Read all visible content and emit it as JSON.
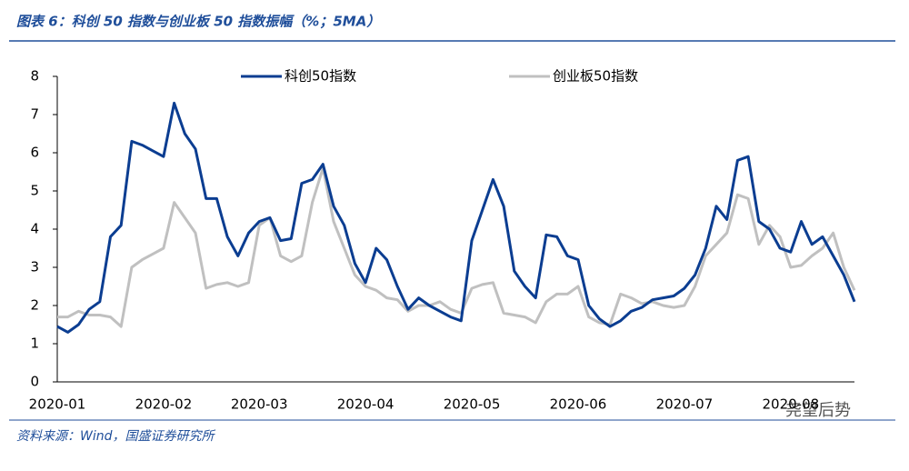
{
  "chart_data": {
    "type": "line",
    "title": "图表 6：科创 50 指数与创业板 50 指数振幅（%；5MA）",
    "source": "资料来源：Wind，国盛证券研究所",
    "watermark": "尧望后势",
    "categories": [
      "2020-01",
      null,
      null,
      null,
      null,
      null,
      null,
      null,
      null,
      null,
      "2020-02",
      null,
      null,
      null,
      null,
      null,
      null,
      null,
      null,
      "2020-03",
      null,
      null,
      null,
      null,
      null,
      null,
      null,
      null,
      null,
      "2020-04",
      null,
      null,
      null,
      null,
      null,
      null,
      null,
      null,
      null,
      "2020-05",
      null,
      null,
      null,
      null,
      null,
      null,
      null,
      null,
      null,
      "2020-06",
      null,
      null,
      null,
      null,
      null,
      null,
      null,
      null,
      null,
      "2020-07",
      null,
      null,
      null,
      null,
      null,
      null,
      null,
      null,
      null,
      "2020-08",
      null,
      null,
      null,
      null,
      null,
      null
    ],
    "series": [
      {
        "name": "科创50指数",
        "color": "#0b3d91",
        "values": [
          1.45,
          1.3,
          1.5,
          1.9,
          2.1,
          3.8,
          4.1,
          6.3,
          6.2,
          6.05,
          5.9,
          7.3,
          6.5,
          6.1,
          4.8,
          4.8,
          3.8,
          3.3,
          3.9,
          4.2,
          4.3,
          3.7,
          3.75,
          5.2,
          5.3,
          5.7,
          4.6,
          4.1,
          3.1,
          2.6,
          3.5,
          3.2,
          2.5,
          1.9,
          2.2,
          2.0,
          1.85,
          1.7,
          1.6,
          3.7,
          4.5,
          5.3,
          4.6,
          2.9,
          2.5,
          2.2,
          3.85,
          3.8,
          3.3,
          3.2,
          2.0,
          1.65,
          1.45,
          1.6,
          1.85,
          1.95,
          2.15,
          2.2,
          2.25,
          2.45,
          2.8,
          3.5,
          4.6,
          4.25,
          5.8,
          5.9,
          4.2,
          4.0,
          3.5,
          3.4,
          4.2,
          3.6,
          3.8,
          3.3,
          2.8,
          2.1
        ]
      },
      {
        "name": "创业板50指数",
        "color": "#c0c0c0",
        "values": [
          1.7,
          1.7,
          1.85,
          1.75,
          1.75,
          1.7,
          1.45,
          3.0,
          3.2,
          3.35,
          3.5,
          4.7,
          4.3,
          3.9,
          2.45,
          2.55,
          2.6,
          2.5,
          2.6,
          4.1,
          4.3,
          3.3,
          3.15,
          3.3,
          4.7,
          5.6,
          4.2,
          3.5,
          2.8,
          2.5,
          2.4,
          2.2,
          2.15,
          1.85,
          2.0,
          2.0,
          2.1,
          1.9,
          1.8,
          2.45,
          2.55,
          2.6,
          1.8,
          1.75,
          1.7,
          1.55,
          2.1,
          2.3,
          2.3,
          2.5,
          1.7,
          1.55,
          1.5,
          2.3,
          2.2,
          2.05,
          2.1,
          2.0,
          1.95,
          2.0,
          2.5,
          3.3,
          3.6,
          3.9,
          4.9,
          4.8,
          3.6,
          4.1,
          3.8,
          3.0,
          3.05,
          3.3,
          3.5,
          3.9,
          3.0,
          2.4
        ]
      }
    ],
    "ylim": [
      0,
      8
    ],
    "yticks": [
      0,
      1,
      2,
      3,
      4,
      5,
      6,
      7,
      8
    ],
    "grid": false,
    "legend": "top"
  }
}
